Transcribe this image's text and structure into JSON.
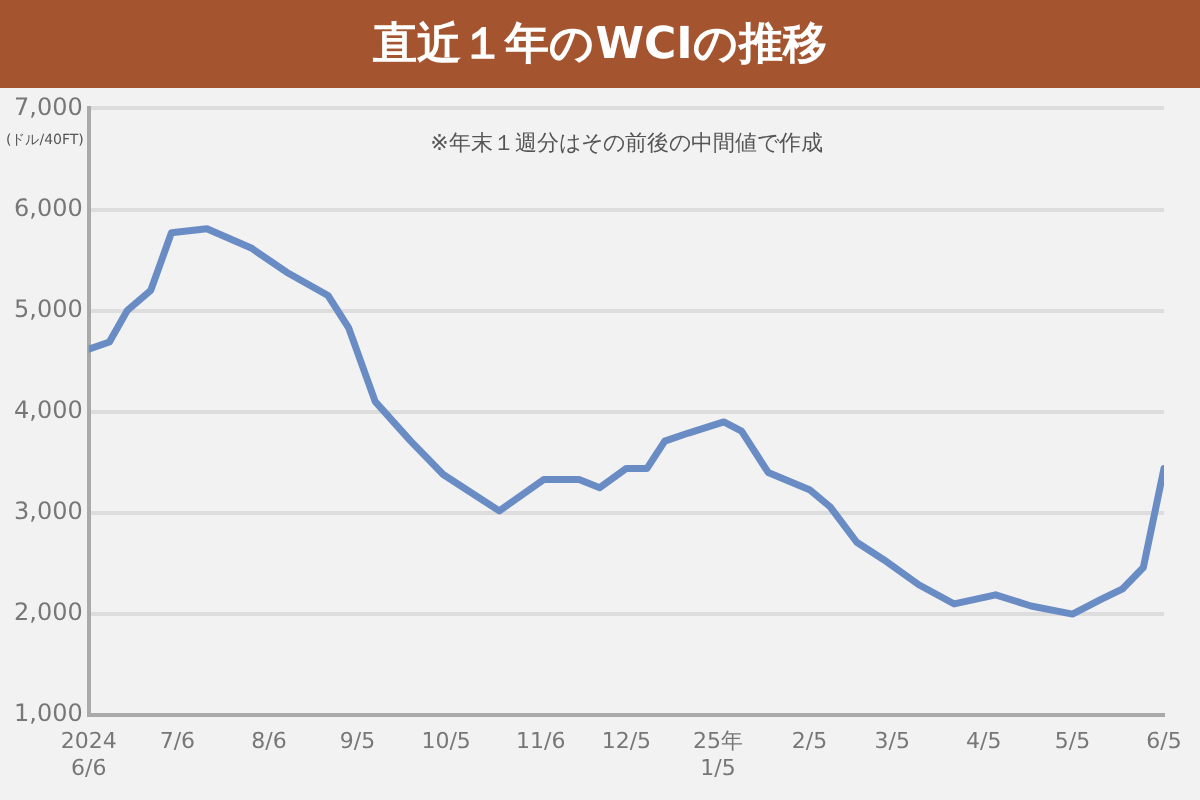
{
  "chart_data": {
    "type": "line",
    "title": "直近１年のWCIの推移",
    "ylabel": "(ドル/40FT)",
    "annotations": [
      "※年末１週分はその前後の中間値で作成"
    ],
    "series": [
      {
        "color": "#6a8cc4",
        "x": [
          "2024-06-06",
          "2024-06-13",
          "2024-06-19",
          "2024-06-27",
          "2024-07-04",
          "2024-07-16",
          "2024-07-31",
          "2024-08-12",
          "2024-08-26",
          "2024-09-02",
          "2024-09-11",
          "2024-09-23",
          "2024-10-04",
          "2024-10-23",
          "2024-11-07",
          "2024-11-19",
          "2024-11-26",
          "2024-12-05",
          "2024-12-12",
          "2024-12-18",
          "2024-12-26",
          "2025-01-07",
          "2025-01-13",
          "2025-01-22",
          "2025-02-05",
          "2025-02-12",
          "2025-02-21",
          "2025-03-02",
          "2025-03-14",
          "2025-03-26",
          "2025-04-09",
          "2025-04-21",
          "2025-05-05",
          "2025-05-15",
          "2025-05-22",
          "2025-05-29",
          "2025-06-05"
        ],
        "values": [
          4620,
          4690,
          5000,
          5200,
          5770,
          5810,
          5620,
          5380,
          5150,
          4830,
          4100,
          3710,
          3380,
          3020,
          3330,
          3330,
          3250,
          3440,
          3440,
          3710,
          3790,
          3900,
          3810,
          3400,
          3230,
          3060,
          2710,
          2540,
          2290,
          2100,
          2190,
          2080,
          2000,
          2150,
          2250,
          2460,
          3440
        ]
      }
    ],
    "xlim": [
      "2024-06-06",
      "2025-06-05"
    ],
    "xticks": [
      {
        "value": "2024-06-06",
        "label": "2024\n6/6"
      },
      {
        "value": "2024-07-06",
        "label": "7/6"
      },
      {
        "value": "2024-08-06",
        "label": "8/6"
      },
      {
        "value": "2024-09-05",
        "label": "9/5"
      },
      {
        "value": "2024-10-05",
        "label": "10/5"
      },
      {
        "value": "2024-11-06",
        "label": "11/6"
      },
      {
        "value": "2024-12-05",
        "label": "12/5"
      },
      {
        "value": "2025-01-05",
        "label": "25年\n1/5"
      },
      {
        "value": "2025-02-05",
        "label": "2/5"
      },
      {
        "value": "2025-03-05",
        "label": "3/5"
      },
      {
        "value": "2025-04-05",
        "label": "4/5"
      },
      {
        "value": "2025-05-05",
        "label": "5/5"
      },
      {
        "value": "2025-06-05",
        "label": "6/5"
      }
    ],
    "ylim": [
      1000,
      7000
    ],
    "yticks": [
      {
        "value": 1000,
        "label": "1,000"
      },
      {
        "value": 2000,
        "label": "2,000"
      },
      {
        "value": 3000,
        "label": "3,000"
      },
      {
        "value": 4000,
        "label": "4,000"
      },
      {
        "value": 5000,
        "label": "5,000"
      },
      {
        "value": 6000,
        "label": "6,000"
      },
      {
        "value": 7000,
        "label": "7,000"
      }
    ],
    "grid": "y",
    "legend": false,
    "marker": "none",
    "line_style": "solid"
  }
}
